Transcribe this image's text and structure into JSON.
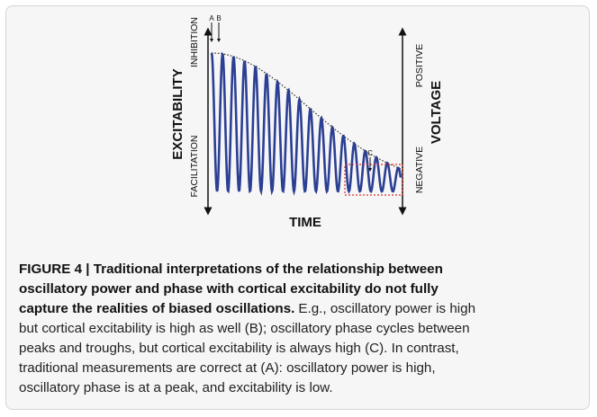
{
  "figure": {
    "y_label": "EXCITABILITY",
    "y_top": "INHIBITION",
    "y_bottom": "FACILITATION",
    "y2_label": "VOLTAGE",
    "y2_top": "POSITIVE",
    "y2_bottom": "NEGATIVE",
    "x_label": "TIME",
    "marker_a": "A",
    "marker_b": "B",
    "marker_c": "C"
  },
  "caption": {
    "bold_lines": [
      "FIGURE 4 | Traditional interpretations of the relationship between",
      "oscillatory power and phase with cortical excitability do not fully",
      "capture the realities of biased oscillations."
    ],
    "text_lines": [
      "E.g., oscillatory power is high",
      "but cortical excitability is high as well (B); oscillatory phase cycles between",
      "peaks and troughs, but cortical excitability is always high (C). In contrast,",
      "traditional measurements are correct at (A): oscillatory power is high,",
      "oscillatory phase is at a peak, and excitability is low."
    ]
  }
}
